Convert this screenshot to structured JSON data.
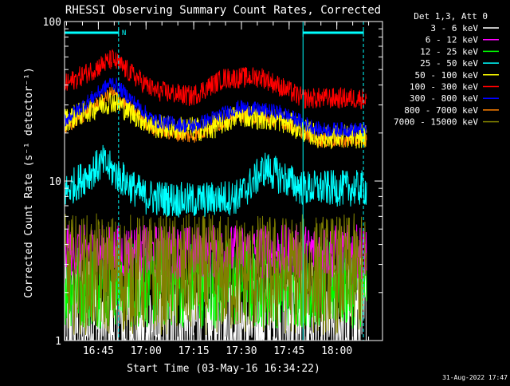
{
  "chart_data": {
    "type": "line",
    "title": "RHESSI Observing Summary Count Rates, Corrected",
    "xlabel": "Start Time (03-May-16 16:34:22)",
    "ylabel": "Corrected Count Rate (s⁻¹ detector⁻¹)",
    "y_scale": "log",
    "ylim": [
      1,
      100
    ],
    "xlim_minutes": [
      0,
      100
    ],
    "x_ticks": [
      {
        "label": "16:45",
        "minutes": 10.63
      },
      {
        "label": "17:00",
        "minutes": 25.63
      },
      {
        "label": "17:15",
        "minutes": 40.63
      },
      {
        "label": "17:30",
        "minutes": 55.63
      },
      {
        "label": "17:45",
        "minutes": 70.63
      },
      {
        "label": "18:00",
        "minutes": 85.63
      }
    ],
    "y_ticks": [
      {
        "label": "1",
        "value": 1
      },
      {
        "label": "10",
        "value": 10
      },
      {
        "label": "100",
        "value": 100
      }
    ],
    "legend_title": "Det 1,3, Att 0",
    "legend_position": "top-right, outside plot",
    "flag_label": "N",
    "flag_bars": [
      [
        0,
        17
      ],
      [
        75,
        94
      ]
    ],
    "night_boundaries_minutes": [
      17,
      75,
      94
    ],
    "series": [
      {
        "name": "3 - 6 keV",
        "color": "#ffffff",
        "level": [
          [
            0,
            1.3
          ],
          [
            100,
            1.3
          ]
        ],
        "noise": 0.45
      },
      {
        "name": "6 - 12 keV",
        "color": "#ff00ff",
        "level": [
          [
            0,
            3.6
          ],
          [
            100,
            3.6
          ]
        ],
        "noise": 0.18
      },
      {
        "name": "12 - 25 keV",
        "color": "#00ff00",
        "level": [
          [
            0,
            2.3
          ],
          [
            100,
            2.3
          ]
        ],
        "noise": 0.3
      },
      {
        "name": "25 - 50 keV",
        "color": "#00ffff",
        "level": [
          [
            0,
            8.5
          ],
          [
            12,
            13
          ],
          [
            25,
            8
          ],
          [
            40,
            7.5
          ],
          [
            55,
            8
          ],
          [
            63,
            12
          ],
          [
            75,
            9
          ],
          [
            100,
            9
          ]
        ],
        "noise": 0.12
      },
      {
        "name": "50 - 100 keV",
        "color": "#ffff00",
        "level": [
          [
            0,
            24
          ],
          [
            15,
            32
          ],
          [
            28,
            22
          ],
          [
            45,
            21
          ],
          [
            55,
            26
          ],
          [
            68,
            24
          ],
          [
            80,
            19
          ],
          [
            100,
            19
          ]
        ],
        "noise": 0.08
      },
      {
        "name": "100 - 300 keV",
        "color": "#ff0000",
        "level": [
          [
            0,
            40
          ],
          [
            15,
            58
          ],
          [
            28,
            37
          ],
          [
            40,
            34
          ],
          [
            50,
            44
          ],
          [
            62,
            45
          ],
          [
            75,
            33
          ],
          [
            100,
            33
          ]
        ],
        "noise": 0.07
      },
      {
        "name": "300 - 800 keV",
        "color": "#0000ff",
        "level": [
          [
            0,
            24
          ],
          [
            15,
            42
          ],
          [
            28,
            24
          ],
          [
            40,
            22
          ],
          [
            55,
            29
          ],
          [
            68,
            27
          ],
          [
            80,
            21
          ],
          [
            100,
            21
          ]
        ],
        "noise": 0.05
      },
      {
        "name": "800 - 7000 keV",
        "color": "#ff8000",
        "level": [
          [
            0,
            21
          ],
          [
            15,
            36
          ],
          [
            28,
            21
          ],
          [
            40,
            19
          ],
          [
            55,
            26
          ],
          [
            68,
            24
          ],
          [
            80,
            18
          ],
          [
            100,
            18
          ]
        ],
        "noise": 0.05
      },
      {
        "name": "7000 - 15000 keV",
        "color": "#808000",
        "level": [
          [
            0,
            2.6
          ],
          [
            100,
            2.6
          ]
        ],
        "noise": 0.4
      }
    ]
  },
  "footer": {
    "date_stamp": "31-Aug-2022 17:47"
  },
  "colors": {
    "background": "#000000",
    "axes": "#ffffff",
    "flag": "#00ffff"
  }
}
